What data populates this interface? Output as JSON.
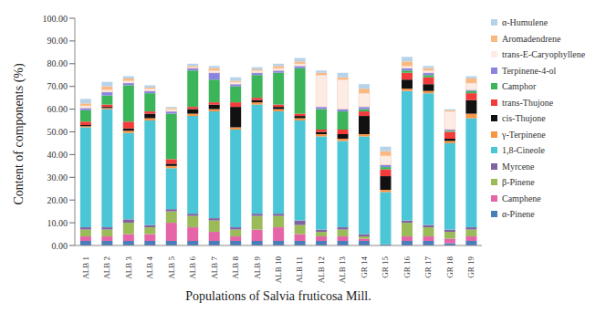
{
  "chart_data": {
    "type": "bar",
    "stacked": true,
    "grid": false,
    "legend": "right",
    "x_label": "Populations of Salvia fruticosa Mill.",
    "y_label": "Content of components (%)",
    "categories": [
      "ALB 1",
      "ALB 2",
      "ALB 3",
      "ALB 4",
      "ALB 5",
      "ALB 6",
      "ALB 7",
      "ALB 8",
      "ALB 9",
      "ALB 10",
      "ALB 11",
      "ALB 12",
      "ALB 13",
      "GR 14",
      "GR 15",
      "GR 16",
      "GR 17",
      "GR 18",
      "GR 19"
    ],
    "ylim": [
      0,
      100
    ],
    "yticks": [
      {
        "value": 0,
        "label": "0.00"
      },
      {
        "value": 10,
        "label": "10.00"
      },
      {
        "value": 20,
        "label": "20.00"
      },
      {
        "value": 30,
        "label": "30.00"
      },
      {
        "value": 40,
        "label": "40.00"
      },
      {
        "value": 50,
        "label": "50.00"
      },
      {
        "value": 60,
        "label": "60.00"
      },
      {
        "value": 70,
        "label": "70.00"
      },
      {
        "value": 80,
        "label": "80.00"
      },
      {
        "value": 90,
        "label": "90.00"
      },
      {
        "value": 100,
        "label": "100.00"
      }
    ],
    "series": [
      {
        "name": "α-Pinene",
        "color": "#4a7ebb",
        "values": [
          2,
          2,
          2,
          2,
          2,
          2,
          2,
          2,
          2,
          2,
          2,
          2,
          2,
          2,
          0.5,
          2,
          2,
          1,
          2
        ]
      },
      {
        "name": "Camphene",
        "color": "#e565a8",
        "values": [
          2,
          2,
          3,
          3,
          8,
          6,
          4,
          2,
          5,
          6,
          3,
          2,
          2,
          1,
          0,
          2,
          2,
          2,
          2
        ]
      },
      {
        "name": "β-Pinene",
        "color": "#9bbb59",
        "values": [
          3,
          3,
          5,
          3,
          5,
          5,
          5,
          3,
          6,
          5,
          4,
          2,
          3,
          1,
          0,
          6,
          4,
          3,
          3
        ]
      },
      {
        "name": "Myrcene",
        "color": "#8064a2",
        "values": [
          1,
          1,
          1.5,
          1,
          1,
          1,
          1,
          1,
          1,
          1,
          2,
          1,
          1,
          1,
          0,
          1,
          1,
          1,
          1
        ]
      },
      {
        "name": "1,8-Cineole",
        "color": "#4bc6d6",
        "values": [
          44,
          52,
          38,
          46,
          18,
          43,
          47,
          43,
          48,
          45,
          44,
          41,
          38,
          43,
          23,
          57,
          58,
          38,
          48
        ]
      },
      {
        "name": "γ-Terpinene",
        "color": "#f79646",
        "values": [
          0.5,
          0.5,
          1,
          1,
          1,
          1,
          1,
          1,
          1,
          1,
          1,
          1,
          1,
          1,
          1,
          1,
          1,
          1,
          2
        ]
      },
      {
        "name": "cis-Thujone",
        "color": "#111111",
        "values": [
          0.5,
          0.5,
          1,
          2,
          1,
          2,
          2,
          9,
          1,
          1,
          1,
          1,
          2,
          8,
          6,
          4,
          3,
          1,
          6
        ]
      },
      {
        "name": "trans-Thujone",
        "color": "#f23b3b",
        "values": [
          1.5,
          1,
          3,
          1,
          2,
          1,
          1,
          2,
          1,
          1,
          1,
          1,
          2,
          2,
          3,
          3,
          3,
          3,
          3
        ]
      },
      {
        "name": "Camphor",
        "color": "#3cb55a",
        "values": [
          5,
          4,
          16,
          8,
          20,
          16,
          10,
          7,
          10,
          14,
          20,
          9,
          8,
          1,
          1,
          1,
          1,
          0.5,
          1
        ]
      },
      {
        "name": "Terpinene-4-ol",
        "color": "#8a84e0",
        "values": [
          1,
          1.5,
          1,
          1,
          1,
          1,
          3,
          1,
          1,
          1,
          1,
          1,
          1,
          1,
          1,
          1,
          1,
          0.5,
          0.5
        ]
      },
      {
        "name": "trans-E-Caryophyllene",
        "color": "#fcece3",
        "values": [
          1,
          1,
          1,
          1,
          1,
          0.5,
          1,
          1,
          1,
          1,
          1,
          14,
          13,
          6,
          4,
          1,
          1,
          8,
          3
        ]
      },
      {
        "name": "Aromadendrene",
        "color": "#fbb982",
        "values": [
          1,
          1.5,
          1,
          0.5,
          0.5,
          0.5,
          1,
          0.5,
          0.5,
          1,
          1,
          1,
          1,
          2,
          2,
          2,
          1,
          0.5,
          2
        ]
      },
      {
        "name": "α-Humulene",
        "color": "#b7d3ea",
        "values": [
          2,
          2,
          1,
          1,
          0.5,
          1,
          1,
          1.5,
          1,
          1,
          1.5,
          1,
          2,
          2,
          2,
          2,
          1,
          0.5,
          1
        ]
      }
    ]
  }
}
